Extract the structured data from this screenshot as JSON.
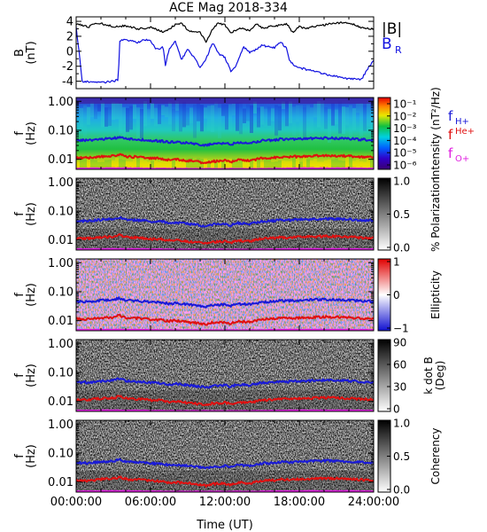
{
  "title": "ACE Mag 2018-334",
  "xlabel": "Time (UT)",
  "x_tick_labels": [
    "00:00:00",
    "06:00:00",
    "12:00:00",
    "18:00:00",
    "24:00:00"
  ],
  "legend_b": {
    "bmag": "|B|",
    "br_main": "B",
    "br_sub": "R",
    "bmag_color": "#000000",
    "br_color": "#1010e0"
  },
  "freq_legend": [
    {
      "main": "f",
      "sub": "H+",
      "color": "#1a1ad8"
    },
    {
      "main": "f",
      "sub": "He+",
      "color": "#e01010"
    },
    {
      "main": "f",
      "sub": "O+",
      "color": "#e020e0"
    }
  ],
  "panels": [
    {
      "ylabel_lines": [
        "B",
        "(nT)"
      ],
      "y_ticks": [
        "4",
        "2",
        "0",
        "-2",
        "-4"
      ],
      "bar": null
    },
    {
      "ylabel_lines": [
        "f",
        "(Hz)"
      ],
      "y_ticks": [
        "1.00",
        "0.10",
        "0.01"
      ],
      "bar": {
        "label": "Intensity (nT²/Hz)",
        "ticks": [
          "10⁻¹",
          "10⁻²",
          "10⁻³",
          "10⁻⁴",
          "10⁻⁵",
          "10⁻⁶"
        ],
        "scheme": "rainbow"
      }
    },
    {
      "ylabel_lines": [
        "f",
        "(Hz)"
      ],
      "y_ticks": [
        "1.00",
        "0.10",
        "0.01"
      ],
      "bar": {
        "label": "% Polarization",
        "ticks": [
          "1.0",
          "0.5",
          "0.0"
        ],
        "scheme": "gray"
      }
    },
    {
      "ylabel_lines": [
        "f",
        "(Hz)"
      ],
      "y_ticks": [
        "1.00",
        "0.10",
        "0.01"
      ],
      "bar": {
        "label": "Ellipticity",
        "ticks": [
          "1",
          "0",
          "−1"
        ],
        "scheme": "bwr"
      }
    },
    {
      "ylabel_lines": [
        "f",
        "(Hz)"
      ],
      "y_ticks": [
        "1.00",
        "0.10",
        "0.01"
      ],
      "bar": {
        "label": "k dot B (Deg)",
        "label_lines": [
          "k dot B",
          "(Deg)"
        ],
        "ticks": [
          "90",
          "60",
          "30",
          "0"
        ],
        "scheme": "gray"
      }
    },
    {
      "ylabel_lines": [
        "f",
        "(Hz)"
      ],
      "y_ticks": [
        "1.00",
        "0.10",
        "0.01"
      ],
      "bar": {
        "label": "Coherency",
        "ticks": [
          "1.0",
          "0.5",
          "0.0"
        ],
        "scheme": "gray"
      }
    }
  ],
  "chart_data": {
    "type": "line",
    "title": "ACE Mag 2018-334",
    "xlabel": "Time (UT)",
    "x_unit": "hours UT",
    "xlim": [
      0,
      24
    ],
    "panels": [
      {
        "name": "magnetic field",
        "ylabel": "B (nT)",
        "ylim": [
          -5,
          4.6
        ],
        "series": [
          {
            "name": "|B|",
            "color": "#000000",
            "x": [
              0,
              0.3,
              1,
              1.5,
              2,
              3,
              4,
              5,
              6,
              7,
              7.5,
              8,
              8.5,
              9,
              10,
              10.5,
              11,
              11.5,
              12,
              12.5,
              13,
              13.5,
              14,
              14.5,
              15,
              16,
              17,
              17.5,
              18,
              18.5,
              19,
              20,
              21,
              22,
              23,
              24
            ],
            "y": [
              3.5,
              3.6,
              3.2,
              3.8,
              3.7,
              3.3,
              3.4,
              3.0,
              3.2,
              2.6,
              2.9,
              3.6,
              3.8,
              2.8,
              2.5,
              1.2,
              3.0,
              3.8,
              3.5,
              2.4,
              3.0,
              3.1,
              2.7,
              3.7,
              3.1,
              3.4,
              3.6,
              2.5,
              3.3,
              3.0,
              3.3,
              3.5,
              3.8,
              3.8,
              3.2,
              3.0
            ]
          },
          {
            "name": "B_R",
            "color": "#1010e0",
            "x": [
              0,
              0.3,
              0.5,
              1,
              2,
              3,
              3.4,
              3.5,
              4,
              5,
              5.5,
              6,
              6.5,
              7,
              7.2,
              7.5,
              8,
              8.5,
              9,
              9.5,
              10,
              10.5,
              11,
              11.5,
              12,
              12.5,
              13,
              13.5,
              14,
              14.5,
              15,
              15.5,
              16,
              16.5,
              17,
              17.2,
              17.5,
              18,
              18.5,
              19,
              20,
              21,
              22,
              23,
              23.5,
              24
            ],
            "y": [
              3.2,
              -1.0,
              -4.1,
              -4.1,
              -4.2,
              -4.0,
              -3.8,
              1.4,
              1.5,
              1.2,
              1.6,
              1.4,
              0.2,
              0.6,
              -1.8,
              0.2,
              1.4,
              -1.2,
              0.4,
              -0.8,
              -2.2,
              -1.0,
              1.2,
              -0.4,
              -0.8,
              -2.8,
              -1.6,
              0.6,
              -0.2,
              0.2,
              0.8,
              0.6,
              0.5,
              1.2,
              0.3,
              -1.2,
              -1.8,
              -2.2,
              -2.4,
              -2.6,
              -3.0,
              -3.4,
              -3.7,
              -3.8,
              -2.4,
              -1.2
            ]
          }
        ]
      },
      {
        "name": "frequency panels (shared overlays on all five spectral panels)",
        "ylabel": "f (Hz)",
        "yscale": "log",
        "ylim": [
          0.0045,
          1.35
        ],
        "series": [
          {
            "name": "f_H+",
            "color": "#1a1ad8",
            "x": [
              0,
              1,
              2,
              3,
              3.5,
              4,
              5,
              6,
              7,
              7.5,
              8,
              9,
              10,
              10.5,
              11,
              12,
              12.5,
              13,
              14,
              15,
              16,
              16.5,
              17,
              18,
              19,
              20,
              21,
              22,
              23,
              24
            ],
            "y": [
              0.046,
              0.045,
              0.05,
              0.052,
              0.06,
              0.05,
              0.048,
              0.044,
              0.042,
              0.038,
              0.04,
              0.036,
              0.032,
              0.03,
              0.034,
              0.036,
              0.032,
              0.038,
              0.036,
              0.044,
              0.046,
              0.05,
              0.048,
              0.05,
              0.052,
              0.054,
              0.053,
              0.051,
              0.048,
              0.046
            ]
          },
          {
            "name": "f_He+",
            "color": "#e01010",
            "x": [
              0,
              1,
              2,
              3,
              3.5,
              4,
              5,
              6,
              7,
              7.5,
              8,
              9,
              10,
              10.5,
              11,
              12,
              12.5,
              13,
              14,
              15,
              16,
              16.5,
              17,
              18,
              19,
              20,
              21,
              22,
              23,
              24
            ],
            "y": [
              0.0115,
              0.0112,
              0.0125,
              0.013,
              0.015,
              0.0125,
              0.012,
              0.011,
              0.0105,
              0.0095,
              0.01,
              0.009,
              0.008,
              0.0075,
              0.0085,
              0.009,
              0.008,
              0.0095,
              0.009,
              0.011,
              0.0115,
              0.0125,
              0.012,
              0.0125,
              0.013,
              0.0135,
              0.0132,
              0.0128,
              0.012,
              0.0115
            ]
          },
          {
            "name": "f_O+",
            "color": "#e020e0",
            "x": [
              0,
              2,
              4,
              6,
              8,
              10,
              12,
              14,
              16,
              18,
              20,
              22,
              24
            ],
            "y": [
              0.0047,
              0.0048,
              0.0048,
              0.0047,
              0.0046,
              0.0046,
              0.0046,
              0.0046,
              0.0047,
              0.0048,
              0.0048,
              0.0048,
              0.0047
            ]
          }
        ]
      }
    ]
  }
}
